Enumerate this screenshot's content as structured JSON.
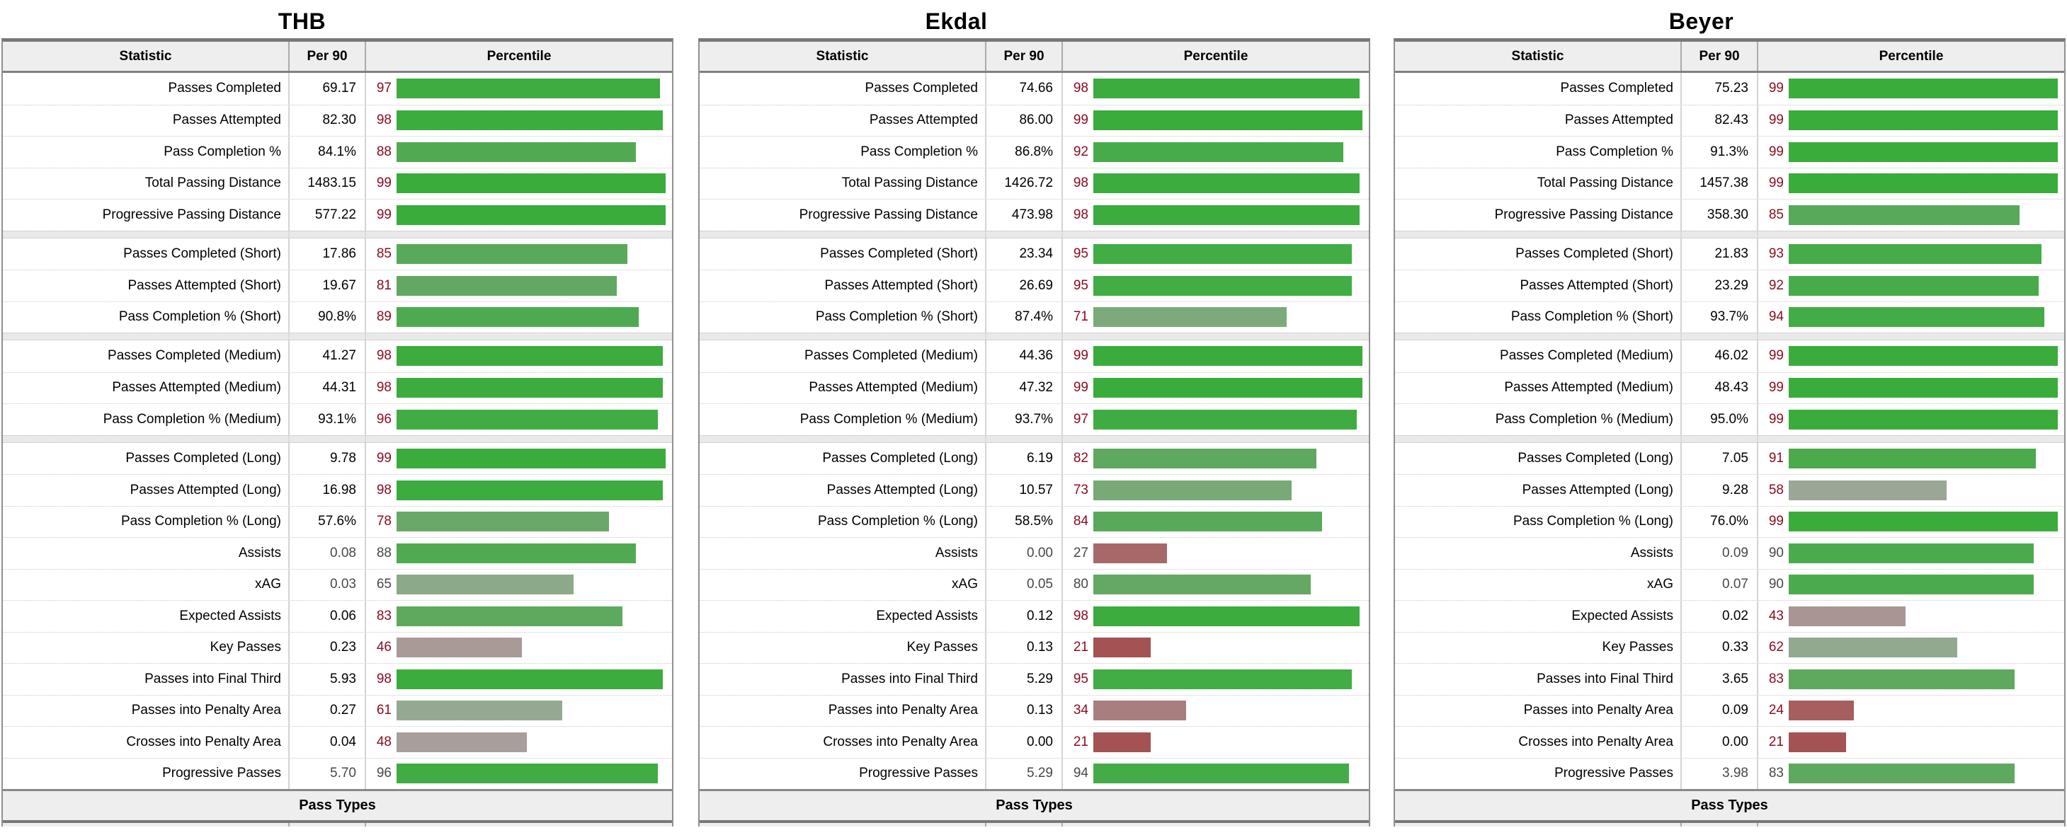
{
  "text_colors": {
    "percentile_number": "#8b0c20",
    "muted_number": "#484848",
    "label": "#000000"
  },
  "percentile_color_scale": [
    {
      "p": 20,
      "color": "#a45052"
    },
    {
      "p": 30,
      "color": "#a87273"
    },
    {
      "p": 40,
      "color": "#aa9090"
    },
    {
      "p": 50,
      "color": "#a8a19e"
    },
    {
      "p": 60,
      "color": "#97a994"
    },
    {
      "p": 70,
      "color": "#80aa7e"
    },
    {
      "p": 80,
      "color": "#64a864"
    },
    {
      "p": 90,
      "color": "#4caa4e"
    },
    {
      "p": 95,
      "color": "#42ac45"
    },
    {
      "p": 100,
      "color": "#38ac3a"
    }
  ],
  "chart_data": [
    {
      "type": "bar",
      "bar_orientation": "horizontal",
      "title": "THB",
      "columns": [
        "Statistic",
        "Per 90",
        "Percentile"
      ],
      "xlim": [
        0,
        100
      ],
      "footer": "Pass Types",
      "sections": [
        {
          "rows": [
            {
              "stat": "Passes Completed",
              "per90": "69.17",
              "percentile": 97,
              "muted": false
            },
            {
              "stat": "Passes Attempted",
              "per90": "82.30",
              "percentile": 98,
              "muted": false
            },
            {
              "stat": "Pass Completion %",
              "per90": "84.1%",
              "percentile": 88,
              "muted": false
            },
            {
              "stat": "Total Passing Distance",
              "per90": "1483.15",
              "percentile": 99,
              "muted": false
            },
            {
              "stat": "Progressive Passing Distance",
              "per90": "577.22",
              "percentile": 99,
              "muted": false
            }
          ]
        },
        {
          "rows": [
            {
              "stat": "Passes Completed (Short)",
              "per90": "17.86",
              "percentile": 85,
              "muted": false
            },
            {
              "stat": "Passes Attempted (Short)",
              "per90": "19.67",
              "percentile": 81,
              "muted": false
            },
            {
              "stat": "Pass Completion % (Short)",
              "per90": "90.8%",
              "percentile": 89,
              "muted": false
            }
          ]
        },
        {
          "rows": [
            {
              "stat": "Passes Completed (Medium)",
              "per90": "41.27",
              "percentile": 98,
              "muted": false
            },
            {
              "stat": "Passes Attempted (Medium)",
              "per90": "44.31",
              "percentile": 98,
              "muted": false
            },
            {
              "stat": "Pass Completion % (Medium)",
              "per90": "93.1%",
              "percentile": 96,
              "muted": false
            }
          ]
        },
        {
          "rows": [
            {
              "stat": "Passes Completed (Long)",
              "per90": "9.78",
              "percentile": 99,
              "muted": false
            },
            {
              "stat": "Passes Attempted (Long)",
              "per90": "16.98",
              "percentile": 98,
              "muted": false
            },
            {
              "stat": "Pass Completion % (Long)",
              "per90": "57.6%",
              "percentile": 78,
              "muted": false
            },
            {
              "stat": "Assists",
              "per90": "0.08",
              "percentile": 88,
              "muted": true
            },
            {
              "stat": "xAG",
              "per90": "0.03",
              "percentile": 65,
              "muted": true
            },
            {
              "stat": "Expected Assists",
              "per90": "0.06",
              "percentile": 83,
              "muted": false
            },
            {
              "stat": "Key Passes",
              "per90": "0.23",
              "percentile": 46,
              "muted": false
            },
            {
              "stat": "Passes into Final Third",
              "per90": "5.93",
              "percentile": 98,
              "muted": false
            },
            {
              "stat": "Passes into Penalty Area",
              "per90": "0.27",
              "percentile": 61,
              "muted": false
            },
            {
              "stat": "Crosses into Penalty Area",
              "per90": "0.04",
              "percentile": 48,
              "muted": false
            },
            {
              "stat": "Progressive Passes",
              "per90": "5.70",
              "percentile": 96,
              "muted": true
            }
          ]
        }
      ]
    },
    {
      "type": "bar",
      "bar_orientation": "horizontal",
      "title": "Ekdal",
      "columns": [
        "Statistic",
        "Per 90",
        "Percentile"
      ],
      "xlim": [
        0,
        100
      ],
      "footer": "Pass Types",
      "sections": [
        {
          "rows": [
            {
              "stat": "Passes Completed",
              "per90": "74.66",
              "percentile": 98,
              "muted": false
            },
            {
              "stat": "Passes Attempted",
              "per90": "86.00",
              "percentile": 99,
              "muted": false
            },
            {
              "stat": "Pass Completion %",
              "per90": "86.8%",
              "percentile": 92,
              "muted": false
            },
            {
              "stat": "Total Passing Distance",
              "per90": "1426.72",
              "percentile": 98,
              "muted": false
            },
            {
              "stat": "Progressive Passing Distance",
              "per90": "473.98",
              "percentile": 98,
              "muted": false
            }
          ]
        },
        {
          "rows": [
            {
              "stat": "Passes Completed (Short)",
              "per90": "23.34",
              "percentile": 95,
              "muted": false
            },
            {
              "stat": "Passes Attempted (Short)",
              "per90": "26.69",
              "percentile": 95,
              "muted": false
            },
            {
              "stat": "Pass Completion % (Short)",
              "per90": "87.4%",
              "percentile": 71,
              "muted": false
            }
          ]
        },
        {
          "rows": [
            {
              "stat": "Passes Completed (Medium)",
              "per90": "44.36",
              "percentile": 99,
              "muted": false
            },
            {
              "stat": "Passes Attempted (Medium)",
              "per90": "47.32",
              "percentile": 99,
              "muted": false
            },
            {
              "stat": "Pass Completion % (Medium)",
              "per90": "93.7%",
              "percentile": 97,
              "muted": false
            }
          ]
        },
        {
          "rows": [
            {
              "stat": "Passes Completed (Long)",
              "per90": "6.19",
              "percentile": 82,
              "muted": false
            },
            {
              "stat": "Passes Attempted (Long)",
              "per90": "10.57",
              "percentile": 73,
              "muted": false
            },
            {
              "stat": "Pass Completion % (Long)",
              "per90": "58.5%",
              "percentile": 84,
              "muted": false
            },
            {
              "stat": "Assists",
              "per90": "0.00",
              "percentile": 27,
              "muted": true
            },
            {
              "stat": "xAG",
              "per90": "0.05",
              "percentile": 80,
              "muted": true
            },
            {
              "stat": "Expected Assists",
              "per90": "0.12",
              "percentile": 98,
              "muted": false
            },
            {
              "stat": "Key Passes",
              "per90": "0.13",
              "percentile": 21,
              "muted": false
            },
            {
              "stat": "Passes into Final Third",
              "per90": "5.29",
              "percentile": 95,
              "muted": false
            },
            {
              "stat": "Passes into Penalty Area",
              "per90": "0.13",
              "percentile": 34,
              "muted": false
            },
            {
              "stat": "Crosses into Penalty Area",
              "per90": "0.00",
              "percentile": 21,
              "muted": false
            },
            {
              "stat": "Progressive Passes",
              "per90": "5.29",
              "percentile": 94,
              "muted": true
            }
          ]
        }
      ]
    },
    {
      "type": "bar",
      "bar_orientation": "horizontal",
      "title": "Beyer",
      "columns": [
        "Statistic",
        "Per 90",
        "Percentile"
      ],
      "xlim": [
        0,
        100
      ],
      "footer": "Pass Types",
      "sections": [
        {
          "rows": [
            {
              "stat": "Passes Completed",
              "per90": "75.23",
              "percentile": 99,
              "muted": false
            },
            {
              "stat": "Passes Attempted",
              "per90": "82.43",
              "percentile": 99,
              "muted": false
            },
            {
              "stat": "Pass Completion %",
              "per90": "91.3%",
              "percentile": 99,
              "muted": false
            },
            {
              "stat": "Total Passing Distance",
              "per90": "1457.38",
              "percentile": 99,
              "muted": false
            },
            {
              "stat": "Progressive Passing Distance",
              "per90": "358.30",
              "percentile": 85,
              "muted": false
            }
          ]
        },
        {
          "rows": [
            {
              "stat": "Passes Completed (Short)",
              "per90": "21.83",
              "percentile": 93,
              "muted": false
            },
            {
              "stat": "Passes Attempted (Short)",
              "per90": "23.29",
              "percentile": 92,
              "muted": false
            },
            {
              "stat": "Pass Completion % (Short)",
              "per90": "93.7%",
              "percentile": 94,
              "muted": false
            }
          ]
        },
        {
          "rows": [
            {
              "stat": "Passes Completed (Medium)",
              "per90": "46.02",
              "percentile": 99,
              "muted": false
            },
            {
              "stat": "Passes Attempted (Medium)",
              "per90": "48.43",
              "percentile": 99,
              "muted": false
            },
            {
              "stat": "Pass Completion % (Medium)",
              "per90": "95.0%",
              "percentile": 99,
              "muted": false
            }
          ]
        },
        {
          "rows": [
            {
              "stat": "Passes Completed (Long)",
              "per90": "7.05",
              "percentile": 91,
              "muted": false
            },
            {
              "stat": "Passes Attempted (Long)",
              "per90": "9.28",
              "percentile": 58,
              "muted": false
            },
            {
              "stat": "Pass Completion % (Long)",
              "per90": "76.0%",
              "percentile": 99,
              "muted": false
            },
            {
              "stat": "Assists",
              "per90": "0.09",
              "percentile": 90,
              "muted": true
            },
            {
              "stat": "xAG",
              "per90": "0.07",
              "percentile": 90,
              "muted": true
            },
            {
              "stat": "Expected Assists",
              "per90": "0.02",
              "percentile": 43,
              "muted": false
            },
            {
              "stat": "Key Passes",
              "per90": "0.33",
              "percentile": 62,
              "muted": false
            },
            {
              "stat": "Passes into Final Third",
              "per90": "3.65",
              "percentile": 83,
              "muted": false
            },
            {
              "stat": "Passes into Penalty Area",
              "per90": "0.09",
              "percentile": 24,
              "muted": false
            },
            {
              "stat": "Crosses into Penalty Area",
              "per90": "0.00",
              "percentile": 21,
              "muted": false
            },
            {
              "stat": "Progressive Passes",
              "per90": "3.98",
              "percentile": 83,
              "muted": true
            }
          ]
        }
      ]
    }
  ]
}
